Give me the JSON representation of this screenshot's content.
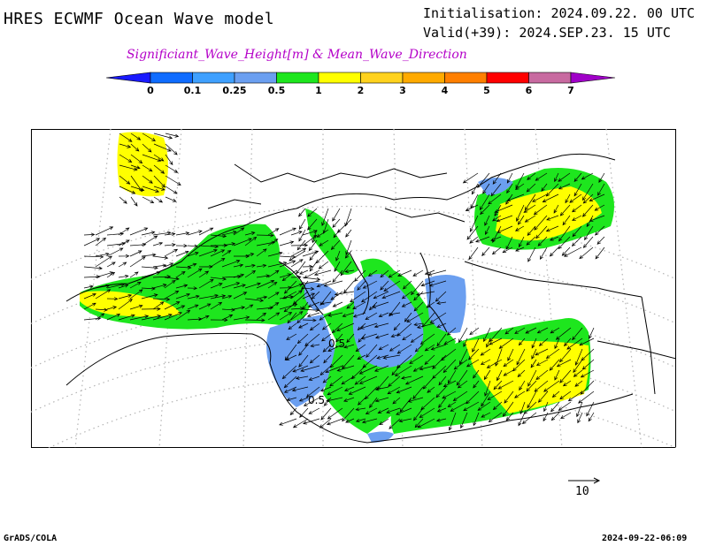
{
  "header": {
    "model_title": "HRES ECWMF Ocean Wave model",
    "initialisation": "Initialisation: 2024.09.22. 00 UTC",
    "valid": "Valid(+39): 2024.SEP.23. 15 UTC",
    "variable": "Significiant_Wave_Height[m] & Mean_Wave_Direction"
  },
  "legend": {
    "ticks": [
      "0",
      "0.1",
      "0.25",
      "0.5",
      "1",
      "2",
      "3",
      "4",
      "5",
      "6",
      "7"
    ],
    "colors": [
      "#1a1aff",
      "#0f6cff",
      "#3fa0ff",
      "#6b9ff0",
      "#1ee61e",
      "#ffff00",
      "#ffd21e",
      "#ffaa00",
      "#ff7f00",
      "#ff0000",
      "#c86aa0",
      "#a000c8"
    ]
  },
  "map": {
    "contour_labels": [
      "0.5",
      "0.5"
    ],
    "field_colors": {
      "land": "#ffffff",
      "below_0_5": "#6b9ff0",
      "0_5_to_1": "#1ee61e",
      "1_to_2": "#ffff00",
      "border": "#000000",
      "grid": "#b4b4b4"
    }
  },
  "scale_vector": {
    "label": "10"
  },
  "footer": {
    "left": "GrADS/COLA",
    "right": "2024-09-22-06:09"
  }
}
